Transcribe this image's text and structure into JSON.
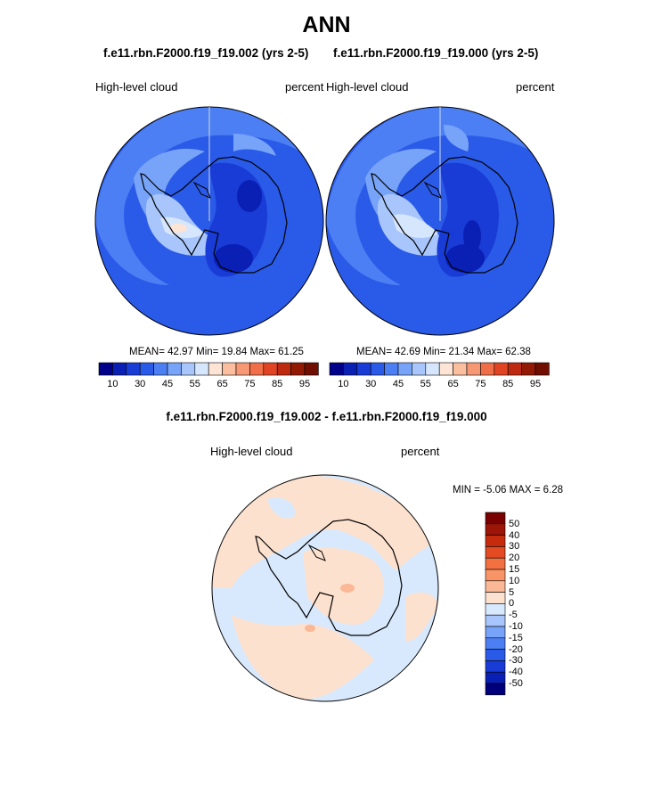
{
  "title": "ANN",
  "colors": {
    "abs_scale": [
      "#00008b",
      "#0a1fb4",
      "#1a3cd6",
      "#2a5ae8",
      "#4c7ff3",
      "#77a3f8",
      "#a8c6fb",
      "#d6e6fd",
      "#fde4d4",
      "#fbbe9f",
      "#f79874",
      "#f06e48",
      "#e04422",
      "#be2a0f",
      "#921a05",
      "#700e00"
    ],
    "diff_scale": [
      "#00007d",
      "#0a1fb4",
      "#1a3cd6",
      "#2a5ae8",
      "#4c7ff3",
      "#77a3f8",
      "#a8c6fb",
      "#d8e9fd",
      "#fde1cf",
      "#fbb896",
      "#f89466",
      "#f37040",
      "#e44b22",
      "#c72b0d",
      "#9c1506",
      "#7a0000"
    ]
  },
  "panels": [
    {
      "case_title": "f.e11.rbn.F2000.f19_f19.002 (yrs 2-5)",
      "left_label": "High-level cloud",
      "right_label": "percent",
      "stats": "MEAN=  42.97  Min=  19.84  Max=  61.25"
    },
    {
      "case_title": "f.e11.rbn.F2000.f19_f19.000 (yrs 2-5)",
      "left_label": "High-level cloud",
      "right_label": "percent",
      "stats": "MEAN=  42.69  Min=  21.34  Max=  62.38"
    }
  ],
  "abs_ticks": [
    "10",
    "30",
    "45",
    "55",
    "65",
    "75",
    "85",
    "95"
  ],
  "diff": {
    "title": "f.e11.rbn.F2000.f19_f19.002 - f.e11.rbn.F2000.f19_f19.000",
    "left_label": "High-level cloud",
    "right_label": "percent",
    "minmax": "MIN =  -5.06 MAX =   6.28",
    "ticks": [
      "50",
      "40",
      "30",
      "20",
      "15",
      "10",
      "5",
      "0",
      "-5",
      "-10",
      "-15",
      "-20",
      "-30",
      "-40",
      "-50"
    ]
  },
  "chart_data": [
    {
      "type": "heatmap",
      "projection": "south polar stereographic",
      "title": "f.e11.rbn.F2000.f19_f19.002 (yrs 2-5)",
      "variable": "High-level cloud",
      "units": "percent",
      "mean": 42.97,
      "min": 19.84,
      "max": 61.25,
      "contour_levels": [
        10,
        15,
        20,
        25,
        30,
        35,
        40,
        45,
        50,
        55,
        60,
        65,
        70,
        75,
        80,
        85,
        90,
        95
      ]
    },
    {
      "type": "heatmap",
      "projection": "south polar stereographic",
      "title": "f.e11.rbn.F2000.f19_f19.000 (yrs 2-5)",
      "variable": "High-level cloud",
      "units": "percent",
      "mean": 42.69,
      "min": 21.34,
      "max": 62.38,
      "contour_levels": [
        10,
        15,
        20,
        25,
        30,
        35,
        40,
        45,
        50,
        55,
        60,
        65,
        70,
        75,
        80,
        85,
        90,
        95
      ]
    },
    {
      "type": "heatmap",
      "projection": "south polar stereographic",
      "title": "f.e11.rbn.F2000.f19_f19.002 - f.e11.rbn.F2000.f19_f19.000",
      "variable": "High-level cloud",
      "units": "percent",
      "min": -5.06,
      "max": 6.28,
      "contour_levels": [
        -50,
        -40,
        -30,
        -20,
        -15,
        -10,
        -5,
        0,
        5,
        10,
        15,
        20,
        30,
        40,
        50
      ]
    }
  ]
}
